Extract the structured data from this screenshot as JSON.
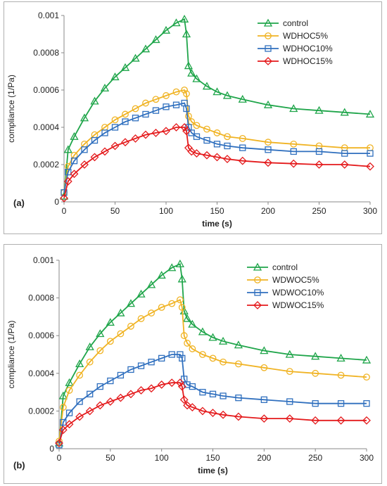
{
  "chart_data": [
    {
      "type": "line",
      "panel_label": "(a)",
      "xlabel": "time (s)",
      "ylabel": "compliance (1/Pa)",
      "xlim": [
        0,
        300
      ],
      "ylim": [
        0,
        0.001
      ],
      "x_ticks": [
        0,
        50,
        100,
        150,
        200,
        250,
        300
      ],
      "y_ticks": [
        0,
        0.0002,
        0.0004,
        0.0006,
        0.0008,
        0.001
      ],
      "y_tick_labels": [
        "0",
        "0.0002",
        "0.0004",
        "0.0006",
        "0.0008",
        "0.001"
      ],
      "grid": false,
      "legend_position": "top-right",
      "series": [
        {
          "name": "control",
          "color": "#1fa54a",
          "marker": "triangle",
          "x": [
            0,
            4,
            10,
            20,
            30,
            40,
            50,
            60,
            70,
            80,
            90,
            100,
            110,
            118,
            120,
            122,
            125,
            130,
            140,
            150,
            160,
            175,
            200,
            225,
            250,
            275,
            300
          ],
          "y": [
            3e-05,
            0.00028,
            0.00035,
            0.00045,
            0.00054,
            0.00061,
            0.00067,
            0.00072,
            0.00077,
            0.00082,
            0.00087,
            0.00092,
            0.00096,
            0.00098,
            0.0009,
            0.00073,
            0.00069,
            0.00066,
            0.00062,
            0.00059,
            0.00057,
            0.00055,
            0.00052,
            0.0005,
            0.00049,
            0.00048,
            0.00047
          ]
        },
        {
          "name": "WDHOC5%",
          "color": "#f0b323",
          "marker": "circle",
          "x": [
            0,
            4,
            10,
            20,
            30,
            40,
            50,
            60,
            70,
            80,
            90,
            100,
            110,
            118,
            120,
            122,
            125,
            130,
            140,
            150,
            160,
            175,
            200,
            225,
            250,
            275,
            300
          ],
          "y": [
            5e-05,
            0.00019,
            0.00025,
            0.00031,
            0.00036,
            0.0004,
            0.00044,
            0.00047,
            0.0005,
            0.00053,
            0.00055,
            0.00057,
            0.00059,
            0.0006,
            0.00058,
            0.00046,
            0.00043,
            0.00041,
            0.00039,
            0.00037,
            0.00035,
            0.00034,
            0.00032,
            0.00031,
            0.0003,
            0.00029,
            0.00029
          ]
        },
        {
          "name": "WDHOC10%",
          "color": "#2f6fbe",
          "marker": "square",
          "x": [
            0,
            4,
            10,
            20,
            30,
            40,
            50,
            60,
            70,
            80,
            90,
            100,
            110,
            118,
            120,
            122,
            125,
            130,
            140,
            150,
            160,
            175,
            200,
            225,
            250,
            275,
            300
          ],
          "y": [
            5e-05,
            0.00016,
            0.00022,
            0.00028,
            0.00033,
            0.00037,
            0.0004,
            0.00043,
            0.00045,
            0.00047,
            0.00049,
            0.00051,
            0.00052,
            0.00053,
            0.0005,
            0.0004,
            0.00037,
            0.00035,
            0.00033,
            0.00031,
            0.0003,
            0.00029,
            0.00028,
            0.00027,
            0.00027,
            0.00026,
            0.00026
          ]
        },
        {
          "name": "WDHOC15%",
          "color": "#e41a1c",
          "marker": "diamond",
          "x": [
            0,
            4,
            10,
            20,
            30,
            40,
            50,
            60,
            70,
            80,
            90,
            100,
            110,
            118,
            120,
            122,
            125,
            130,
            140,
            150,
            160,
            175,
            200,
            225,
            250,
            275,
            300
          ],
          "y": [
            2e-05,
            0.00011,
            0.00015,
            0.0002,
            0.00024,
            0.00027,
            0.0003,
            0.00032,
            0.00034,
            0.00036,
            0.00037,
            0.00038,
            0.0004,
            0.0004,
            0.00038,
            0.00029,
            0.00027,
            0.00026,
            0.00025,
            0.00024,
            0.00023,
            0.00022,
            0.00021,
            0.000205,
            0.0002,
            0.0002,
            0.00019
          ]
        }
      ]
    },
    {
      "type": "line",
      "panel_label": "(b)",
      "xlabel": "time (s)",
      "ylabel": "compliance (1/Pa)",
      "xlim": [
        0,
        300
      ],
      "ylim": [
        0,
        0.001
      ],
      "x_ticks": [
        0,
        50,
        100,
        150,
        200,
        250,
        300
      ],
      "y_ticks": [
        0,
        0.0002,
        0.0004,
        0.0006,
        0.0008,
        0.001
      ],
      "y_tick_labels": [
        "0",
        "0.0002",
        "0.0004",
        "0.0006",
        "0.0008",
        "0.001"
      ],
      "grid": false,
      "legend_position": "top-right",
      "series": [
        {
          "name": "control",
          "color": "#1fa54a",
          "marker": "triangle",
          "x": [
            0,
            4,
            10,
            20,
            30,
            40,
            50,
            60,
            70,
            80,
            90,
            100,
            110,
            118,
            120,
            122,
            125,
            130,
            140,
            150,
            160,
            175,
            200,
            225,
            250,
            275,
            300
          ],
          "y": [
            3e-05,
            0.00028,
            0.00035,
            0.00045,
            0.00054,
            0.00061,
            0.00067,
            0.00072,
            0.00077,
            0.00082,
            0.00087,
            0.00092,
            0.00096,
            0.00098,
            0.0009,
            0.00073,
            0.00069,
            0.00066,
            0.00062,
            0.00059,
            0.00057,
            0.00055,
            0.00052,
            0.0005,
            0.00049,
            0.00048,
            0.00047
          ]
        },
        {
          "name": "WDWOC5%",
          "color": "#f0b323",
          "marker": "circle",
          "x": [
            0,
            4,
            10,
            20,
            30,
            40,
            50,
            60,
            70,
            80,
            90,
            100,
            110,
            118,
            120,
            122,
            125,
            130,
            140,
            150,
            160,
            175,
            200,
            225,
            250,
            275,
            300
          ],
          "y": [
            4e-05,
            0.00022,
            0.00031,
            0.00039,
            0.00046,
            0.00052,
            0.00057,
            0.00061,
            0.00065,
            0.00069,
            0.00072,
            0.00075,
            0.00077,
            0.00079,
            0.00075,
            0.0006,
            0.00056,
            0.00053,
            0.0005,
            0.00048,
            0.00046,
            0.00045,
            0.00043,
            0.00041,
            0.0004,
            0.00039,
            0.00038
          ]
        },
        {
          "name": "WDWOC10%",
          "color": "#2f6fbe",
          "marker": "square",
          "x": [
            0,
            4,
            10,
            20,
            30,
            40,
            50,
            60,
            70,
            80,
            90,
            100,
            110,
            118,
            120,
            122,
            125,
            130,
            140,
            150,
            160,
            175,
            200,
            225,
            250,
            275,
            300
          ],
          "y": [
            2e-05,
            0.00014,
            0.00019,
            0.00025,
            0.00029,
            0.00033,
            0.00036,
            0.00039,
            0.00042,
            0.00044,
            0.00046,
            0.00048,
            0.0005,
            0.0005,
            0.00048,
            0.00037,
            0.00034,
            0.00033,
            0.0003,
            0.00029,
            0.00028,
            0.00027,
            0.00026,
            0.00025,
            0.00024,
            0.00024,
            0.00024
          ]
        },
        {
          "name": "WDWOC15%",
          "color": "#e41a1c",
          "marker": "diamond",
          "x": [
            0,
            4,
            10,
            20,
            30,
            40,
            50,
            60,
            70,
            80,
            90,
            100,
            110,
            118,
            120,
            122,
            125,
            130,
            140,
            150,
            160,
            175,
            200,
            225,
            250,
            275,
            300
          ],
          "y": [
            3e-05,
            0.0001,
            0.00013,
            0.00017,
            0.0002,
            0.00023,
            0.00025,
            0.00027,
            0.00029,
            0.00031,
            0.00032,
            0.00034,
            0.00035,
            0.00035,
            0.00033,
            0.00026,
            0.00023,
            0.00022,
            0.0002,
            0.00019,
            0.00018,
            0.00017,
            0.00016,
            0.00016,
            0.00015,
            0.00015,
            0.00015
          ]
        }
      ]
    }
  ]
}
